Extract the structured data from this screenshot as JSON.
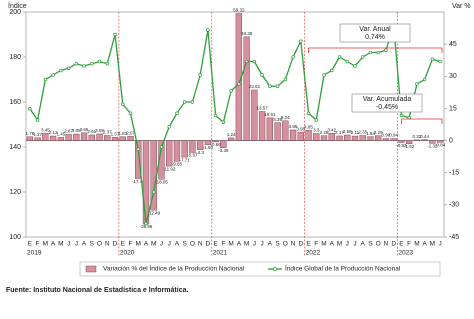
{
  "chart_data": {
    "type": "bar-line",
    "y_label": "Índice",
    "y2_label": "Var %",
    "categories": [
      "E",
      "F",
      "M",
      "A",
      "M",
      "J",
      "J",
      "A",
      "S",
      "O",
      "N",
      "D",
      "E",
      "F",
      "M",
      "A",
      "M",
      "J",
      "J",
      "A",
      "S",
      "O",
      "N",
      "D",
      "E",
      "F",
      "M",
      "A",
      "M",
      "J",
      "J",
      "A",
      "S",
      "O",
      "N",
      "D",
      "E",
      "F",
      "M",
      "A",
      "M",
      "J",
      "J",
      "A",
      "S",
      "O",
      "N",
      "D",
      "E",
      "F",
      "M",
      "A",
      "M",
      "J"
    ],
    "years": [
      "2019",
      "2020",
      "2021",
      "2022",
      "2023"
    ],
    "ylim": [
      100,
      200
    ],
    "yticks": [
      100,
      120,
      140,
      160,
      180,
      200
    ],
    "y2lim": [
      -45,
      60
    ],
    "y2ticks": [
      -45,
      -30,
      -15,
      0,
      15,
      30,
      45
    ],
    "series": [
      {
        "name": "Variación % del Índice de la Producción Nacional",
        "type": "bar",
        "axis": "y2",
        "color": "#d68f9c",
        "values": [
          1.78,
          1.27,
          3.45,
          2.12,
          1.45,
          2.87,
          3.05,
          3.66,
          2.61,
          3.09,
          2.37,
          1.57,
          1.83,
          2.07,
          -17.74,
          -38.96,
          -32.49,
          -18.05,
          -11.92,
          -9.65,
          -7.71,
          -5.57,
          -4.3,
          -1.93,
          -0.66,
          -3.35,
          1.24,
          59.33,
          48.39,
          23.62,
          13.57,
          10.61,
          8.39,
          9.24,
          4.95,
          3.95,
          4.85,
          3.3,
          2.29,
          3.42,
          2.17,
          2.58,
          2.11,
          2.35,
          1.84,
          2.29,
          0.96,
          0.94,
          -0.93,
          -1.52,
          0.32,
          0.44,
          -1.32,
          -0.84
        ]
      },
      {
        "name": "Índice Global de la Producción Nacional",
        "type": "line",
        "color": "#2e9e3a",
        "values": [
          157,
          152,
          170,
          172,
          174,
          175,
          177,
          176,
          177,
          178,
          177,
          190,
          159,
          155,
          139,
          106,
          120,
          140,
          149,
          155,
          160,
          160,
          172,
          192,
          154,
          151,
          165,
          168,
          178,
          178,
          172,
          167,
          167,
          170,
          180,
          187,
          155,
          152,
          172,
          174,
          180,
          178,
          176,
          180,
          182,
          182,
          183,
          194,
          154,
          153,
          168,
          170,
          179,
          178
        ]
      }
    ],
    "annotations": [
      {
        "title": "Var. Anual",
        "text": "0,74%"
      },
      {
        "title": "Var. Acumulada",
        "text": "-0,45%"
      }
    ],
    "source": "Fuente: Instituto Nacional de Estadística e Informática."
  }
}
